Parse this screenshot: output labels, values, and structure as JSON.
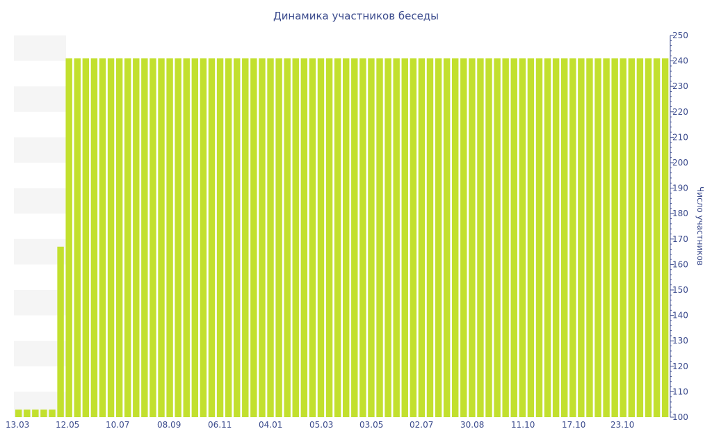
{
  "chart_data": {
    "type": "bar",
    "title": "Динамика участников беседы",
    "ylabel": "Число участников",
    "xlabel": "",
    "ylim": [
      100,
      250
    ],
    "y_ticks": [
      100,
      110,
      120,
      130,
      140,
      150,
      160,
      170,
      180,
      190,
      200,
      210,
      220,
      230,
      240,
      250
    ],
    "x_tick_labels": [
      "13.03",
      "12.05",
      "10.07",
      "08.09",
      "06.11",
      "04.01",
      "05.03",
      "03.05",
      "02.07",
      "30.08",
      "11.10",
      "17.10",
      "23.10"
    ],
    "y_axis_position": "right",
    "grid": "horizontal bands",
    "colors": {
      "bar": "#c2e02e",
      "band": "#f5f5f5",
      "text": "#3a4a8c",
      "axis": "#3a4a8c"
    },
    "values": [
      103,
      103,
      103,
      103,
      103,
      167,
      241,
      241,
      241,
      241,
      241,
      241,
      241,
      241,
      241,
      241,
      241,
      241,
      241,
      241,
      241,
      241,
      241,
      241,
      241,
      241,
      241,
      241,
      241,
      241,
      241,
      241,
      241,
      241,
      241,
      241,
      241,
      241,
      241,
      241,
      241,
      241,
      241,
      241,
      241,
      241,
      241,
      241,
      241,
      241,
      241,
      241,
      241,
      241,
      241,
      241,
      241,
      241,
      241,
      241,
      241,
      241,
      241,
      241,
      241,
      241,
      241,
      241,
      241,
      241,
      241,
      241,
      241,
      241,
      241,
      241,
      241,
      241
    ]
  }
}
